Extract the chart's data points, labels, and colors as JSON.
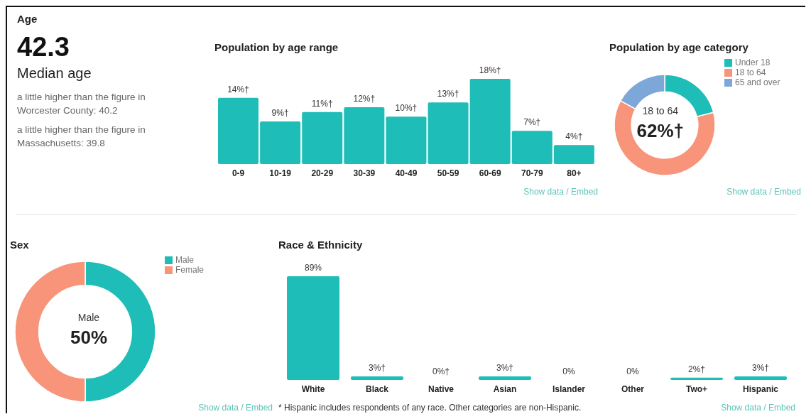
{
  "chart_data": [
    {
      "type": "other",
      "title": "Age",
      "annotations": [
        "42.3",
        "Median age",
        "a little higher than the figure in Worcester County: 40.2",
        "a little higher than the figure in Massachusetts: 39.8"
      ]
    },
    {
      "type": "bar",
      "title": "Population by age range",
      "categories": [
        "0-9",
        "10-19",
        "20-29",
        "30-39",
        "40-49",
        "50-59",
        "60-69",
        "70-79",
        "80+"
      ],
      "values": [
        14,
        9,
        11,
        12,
        10,
        13,
        18,
        7,
        4
      ],
      "value_labels": [
        "14%†",
        "9%†",
        "11%†",
        "12%†",
        "10%†",
        "13%†",
        "18%†",
        "7%†",
        "4%†"
      ],
      "color": "#1fbdb7",
      "grid": false,
      "annotations": [
        "Show data / Embed"
      ]
    },
    {
      "type": "donut",
      "title": "Population by age category",
      "categories": [
        "Under 18",
        "18 to 64",
        "65 and over"
      ],
      "values": [
        21,
        62,
        17
      ],
      "colors": [
        "#1fbdb7",
        "#f7947a",
        "#7da7d9"
      ],
      "value_labels": [
        null,
        "62%†",
        null
      ],
      "legend": "right",
      "annotations": [
        "Show data / Embed"
      ]
    },
    {
      "type": "donut",
      "title": "Sex",
      "categories": [
        "Male",
        "Female"
      ],
      "values": [
        50,
        50
      ],
      "colors": [
        "#1fbdb7",
        "#f7947a"
      ],
      "value_labels": [
        "50%",
        null
      ],
      "legend": "right",
      "annotations": [
        "Show data / Embed"
      ]
    },
    {
      "type": "bar",
      "title": "Race & Ethnicity",
      "categories": [
        "White",
        "Black",
        "Native",
        "Asian",
        "Islander",
        "Other",
        "Two+",
        "Hispanic"
      ],
      "values": [
        89,
        3,
        0,
        3,
        0,
        0,
        2,
        3
      ],
      "value_labels": [
        "89%",
        "3%†",
        "0%†",
        "3%†",
        "0%",
        "0%",
        "2%†",
        "3%†"
      ],
      "color": "#1fbdb7",
      "grid": false,
      "annotations": [
        "* Hispanic includes respondents of any race. Other categories are non-Hispanic.",
        "Show data / Embed"
      ]
    }
  ]
}
